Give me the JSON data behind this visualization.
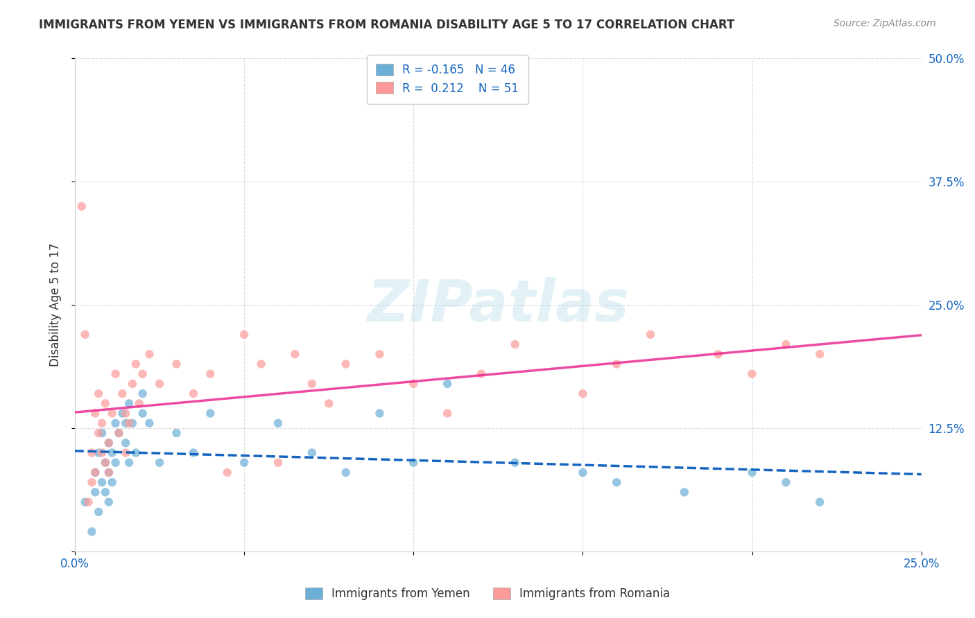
{
  "title": "IMMIGRANTS FROM YEMEN VS IMMIGRANTS FROM ROMANIA DISABILITY AGE 5 TO 17 CORRELATION CHART",
  "source": "Source: ZipAtlas.com",
  "xlabel": "",
  "ylabel": "Disability Age 5 to 17",
  "xlim": [
    0.0,
    0.25
  ],
  "ylim": [
    0.0,
    0.5
  ],
  "xticks": [
    0.0,
    0.05,
    0.1,
    0.15,
    0.2,
    0.25
  ],
  "yticks": [
    0.0,
    0.125,
    0.25,
    0.375,
    0.5
  ],
  "xtick_labels": [
    "0.0%",
    "",
    "",
    "",
    "",
    "25.0%"
  ],
  "ytick_labels": [
    "",
    "12.5%",
    "25.0%",
    "37.5%",
    "50.0%"
  ],
  "yemen_color": "#6baed6",
  "romania_color": "#fb9a99",
  "yemen_R": -0.165,
  "yemen_N": 46,
  "romania_R": 0.212,
  "romania_N": 51,
  "watermark": "ZIPatlas",
  "legend_R_color": "#1565c0",
  "background_color": "#ffffff",
  "grid_color": "#cccccc",
  "yemen_scatter_x": [
    0.003,
    0.005,
    0.006,
    0.006,
    0.007,
    0.007,
    0.008,
    0.008,
    0.009,
    0.009,
    0.01,
    0.01,
    0.01,
    0.011,
    0.011,
    0.012,
    0.012,
    0.013,
    0.014,
    0.015,
    0.015,
    0.016,
    0.016,
    0.017,
    0.018,
    0.02,
    0.02,
    0.022,
    0.025,
    0.03,
    0.035,
    0.04,
    0.05,
    0.06,
    0.07,
    0.08,
    0.09,
    0.1,
    0.11,
    0.13,
    0.15,
    0.16,
    0.18,
    0.2,
    0.21,
    0.22
  ],
  "yemen_scatter_y": [
    0.05,
    0.02,
    0.08,
    0.06,
    0.1,
    0.04,
    0.12,
    0.07,
    0.09,
    0.06,
    0.08,
    0.11,
    0.05,
    0.1,
    0.07,
    0.13,
    0.09,
    0.12,
    0.14,
    0.13,
    0.11,
    0.15,
    0.09,
    0.13,
    0.1,
    0.14,
    0.16,
    0.13,
    0.09,
    0.12,
    0.1,
    0.14,
    0.09,
    0.13,
    0.1,
    0.08,
    0.14,
    0.09,
    0.17,
    0.09,
    0.08,
    0.07,
    0.06,
    0.08,
    0.07,
    0.05
  ],
  "romania_scatter_x": [
    0.002,
    0.003,
    0.004,
    0.005,
    0.005,
    0.006,
    0.006,
    0.007,
    0.007,
    0.008,
    0.008,
    0.009,
    0.009,
    0.01,
    0.01,
    0.011,
    0.012,
    0.013,
    0.014,
    0.015,
    0.015,
    0.016,
    0.017,
    0.018,
    0.019,
    0.02,
    0.022,
    0.025,
    0.03,
    0.035,
    0.04,
    0.045,
    0.05,
    0.055,
    0.06,
    0.065,
    0.07,
    0.075,
    0.08,
    0.09,
    0.1,
    0.11,
    0.12,
    0.13,
    0.15,
    0.16,
    0.17,
    0.19,
    0.2,
    0.21,
    0.22
  ],
  "romania_scatter_y": [
    0.35,
    0.22,
    0.05,
    0.07,
    0.1,
    0.08,
    0.14,
    0.12,
    0.16,
    0.1,
    0.13,
    0.15,
    0.09,
    0.11,
    0.08,
    0.14,
    0.18,
    0.12,
    0.16,
    0.14,
    0.1,
    0.13,
    0.17,
    0.19,
    0.15,
    0.18,
    0.2,
    0.17,
    0.19,
    0.16,
    0.18,
    0.08,
    0.22,
    0.19,
    0.09,
    0.2,
    0.17,
    0.15,
    0.19,
    0.2,
    0.17,
    0.14,
    0.18,
    0.21,
    0.16,
    0.19,
    0.22,
    0.2,
    0.18,
    0.21,
    0.2
  ]
}
